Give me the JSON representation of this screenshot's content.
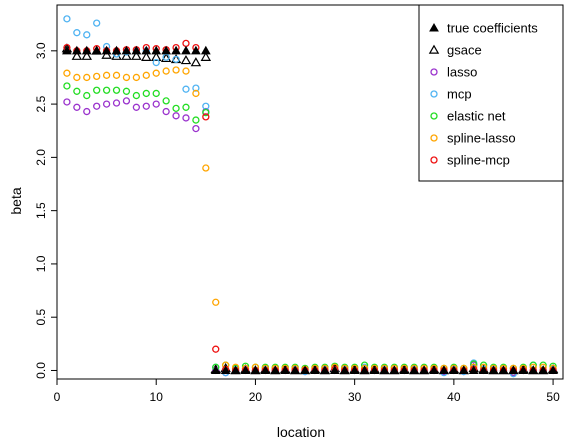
{
  "chart_data": {
    "type": "scatter",
    "title": "",
    "xlabel": "location",
    "ylabel": "beta",
    "xlim": [
      0,
      51
    ],
    "ylim": [
      -0.08,
      3.43
    ],
    "xticks": [
      0,
      10,
      20,
      30,
      40,
      50
    ],
    "xtick_labels": [
      "0",
      "10",
      "20",
      "30",
      "40",
      "50"
    ],
    "yticks": [
      0.0,
      0.5,
      1.0,
      1.5,
      2.0,
      2.5,
      3.0
    ],
    "ytick_labels": [
      "0.0",
      "0.5",
      "1.0",
      "1.5",
      "2.0",
      "2.5",
      "3.0"
    ],
    "grid": false,
    "legend_position": "top-right",
    "x": [
      1,
      2,
      3,
      4,
      5,
      6,
      7,
      8,
      9,
      10,
      11,
      12,
      13,
      14,
      15,
      16,
      17,
      18,
      19,
      20,
      21,
      22,
      23,
      24,
      25,
      26,
      27,
      28,
      29,
      30,
      31,
      32,
      33,
      34,
      35,
      36,
      37,
      38,
      39,
      40,
      41,
      42,
      43,
      44,
      45,
      46,
      47,
      48,
      49,
      50
    ],
    "series": [
      {
        "name": "true coefficients",
        "marker": "filled-triangle",
        "color": "#000000",
        "values": [
          3,
          3,
          3,
          3,
          3,
          3,
          3,
          3,
          3,
          3,
          3,
          3,
          3,
          3,
          3,
          0,
          0,
          0,
          0,
          0,
          0,
          0,
          0,
          0,
          0,
          0,
          0,
          0,
          0,
          0,
          0,
          0,
          0,
          0,
          0,
          0,
          0,
          0,
          0,
          0,
          0,
          0,
          0,
          0,
          0,
          0,
          0,
          0,
          0,
          0
        ]
      },
      {
        "name": "gsace",
        "marker": "open-triangle",
        "color": "#000000",
        "values": [
          3.02,
          2.95,
          2.95,
          3.0,
          2.96,
          2.95,
          2.95,
          2.95,
          2.94,
          2.94,
          2.93,
          2.92,
          2.91,
          2.89,
          2.94,
          0.01,
          0.02,
          0.0,
          0.01,
          0.0,
          0.01,
          0.0,
          0.01,
          0.0,
          0.0,
          0.01,
          0.0,
          0.02,
          0.0,
          0.01,
          0.0,
          0.01,
          0.0,
          0.0,
          0.01,
          0.0,
          0.0,
          0.01,
          0.0,
          0.01,
          0.0,
          0.02,
          0.01,
          0.0,
          0.0,
          0.0,
          0.01,
          0.0,
          0.0,
          0.01
        ]
      },
      {
        "name": "lasso",
        "marker": "circle",
        "color": "#9a32cd",
        "values": [
          2.52,
          2.47,
          2.43,
          2.48,
          2.5,
          2.51,
          2.53,
          2.47,
          2.48,
          2.5,
          2.43,
          2.39,
          2.37,
          2.27,
          2.43,
          0.0,
          -0.02,
          0.0,
          0.01,
          0.0,
          0.0,
          0.0,
          0.0,
          0.0,
          -0.01,
          0.0,
          0.0,
          0.0,
          0.0,
          0.0,
          0.0,
          0.0,
          0.0,
          0.0,
          0.0,
          0.0,
          0.0,
          0.0,
          -0.01,
          0.0,
          -0.01,
          0.05,
          0.01,
          0.0,
          0.0,
          -0.02,
          0.0,
          0.0,
          0.0,
          0.0
        ]
      },
      {
        "name": "mcp",
        "marker": "circle",
        "color": "#4fb3f2",
        "values": [
          3.3,
          3.17,
          3.15,
          3.26,
          3.04,
          2.97,
          2.99,
          3.0,
          3.0,
          2.89,
          2.94,
          2.92,
          2.64,
          2.65,
          2.48,
          0.03,
          -0.02,
          0.01,
          0.02,
          0.0,
          0.01,
          0.02,
          0.0,
          0.01,
          -0.01,
          0.0,
          0.01,
          0.0,
          0.01,
          0.0,
          0.03,
          0.0,
          0.01,
          0.0,
          0.0,
          0.01,
          0.0,
          0.0,
          -0.02,
          0.01,
          -0.01,
          0.07,
          0.01,
          0.01,
          0.02,
          -0.03,
          0.0,
          0.05,
          0.0,
          0.01
        ]
      },
      {
        "name": "elastic net",
        "marker": "circle",
        "color": "#22dd22",
        "values": [
          2.67,
          2.62,
          2.58,
          2.63,
          2.63,
          2.63,
          2.62,
          2.58,
          2.6,
          2.6,
          2.53,
          2.46,
          2.47,
          2.35,
          2.42,
          0.03,
          0.05,
          0.02,
          0.04,
          0.03,
          0.03,
          0.03,
          0.03,
          0.03,
          0.02,
          0.03,
          0.03,
          0.04,
          0.03,
          0.03,
          0.05,
          0.03,
          0.03,
          0.03,
          0.03,
          0.03,
          0.03,
          0.03,
          0.02,
          0.03,
          0.02,
          0.06,
          0.05,
          0.03,
          0.03,
          0.02,
          0.03,
          0.05,
          0.05,
          0.04
        ]
      },
      {
        "name": "spline-lasso",
        "marker": "circle",
        "color": "#ffa500",
        "values": [
          2.79,
          2.75,
          2.75,
          2.76,
          2.77,
          2.77,
          2.75,
          2.75,
          2.77,
          2.79,
          2.81,
          2.82,
          2.81,
          2.6,
          1.9,
          0.64,
          0.05,
          0.03,
          0.02,
          0.03,
          0.02,
          0.02,
          0.02,
          0.02,
          0.01,
          0.02,
          0.02,
          0.03,
          0.02,
          0.02,
          0.02,
          0.02,
          0.02,
          0.02,
          0.02,
          0.02,
          0.02,
          0.02,
          0.02,
          0.02,
          0.02,
          0.03,
          0.03,
          0.02,
          0.02,
          0.02,
          0.02,
          0.03,
          0.03,
          0.02
        ]
      },
      {
        "name": "spline-mcp",
        "marker": "circle",
        "color": "#ee1111",
        "values": [
          3.03,
          3.0,
          3.0,
          3.02,
          3.0,
          3.0,
          3.01,
          3.01,
          3.03,
          3.02,
          3.01,
          3.03,
          3.07,
          3.03,
          2.38,
          0.2,
          0.01,
          0.0,
          0.0,
          0.0,
          0.0,
          0.0,
          0.0,
          0.0,
          0.0,
          0.0,
          0.0,
          0.01,
          0.0,
          0.0,
          0.0,
          0.0,
          0.0,
          0.0,
          0.0,
          0.0,
          0.0,
          0.0,
          0.0,
          0.0,
          0.0,
          0.01,
          0.0,
          0.0,
          0.0,
          0.0,
          0.0,
          0.0,
          0.0,
          0.0
        ]
      }
    ]
  }
}
